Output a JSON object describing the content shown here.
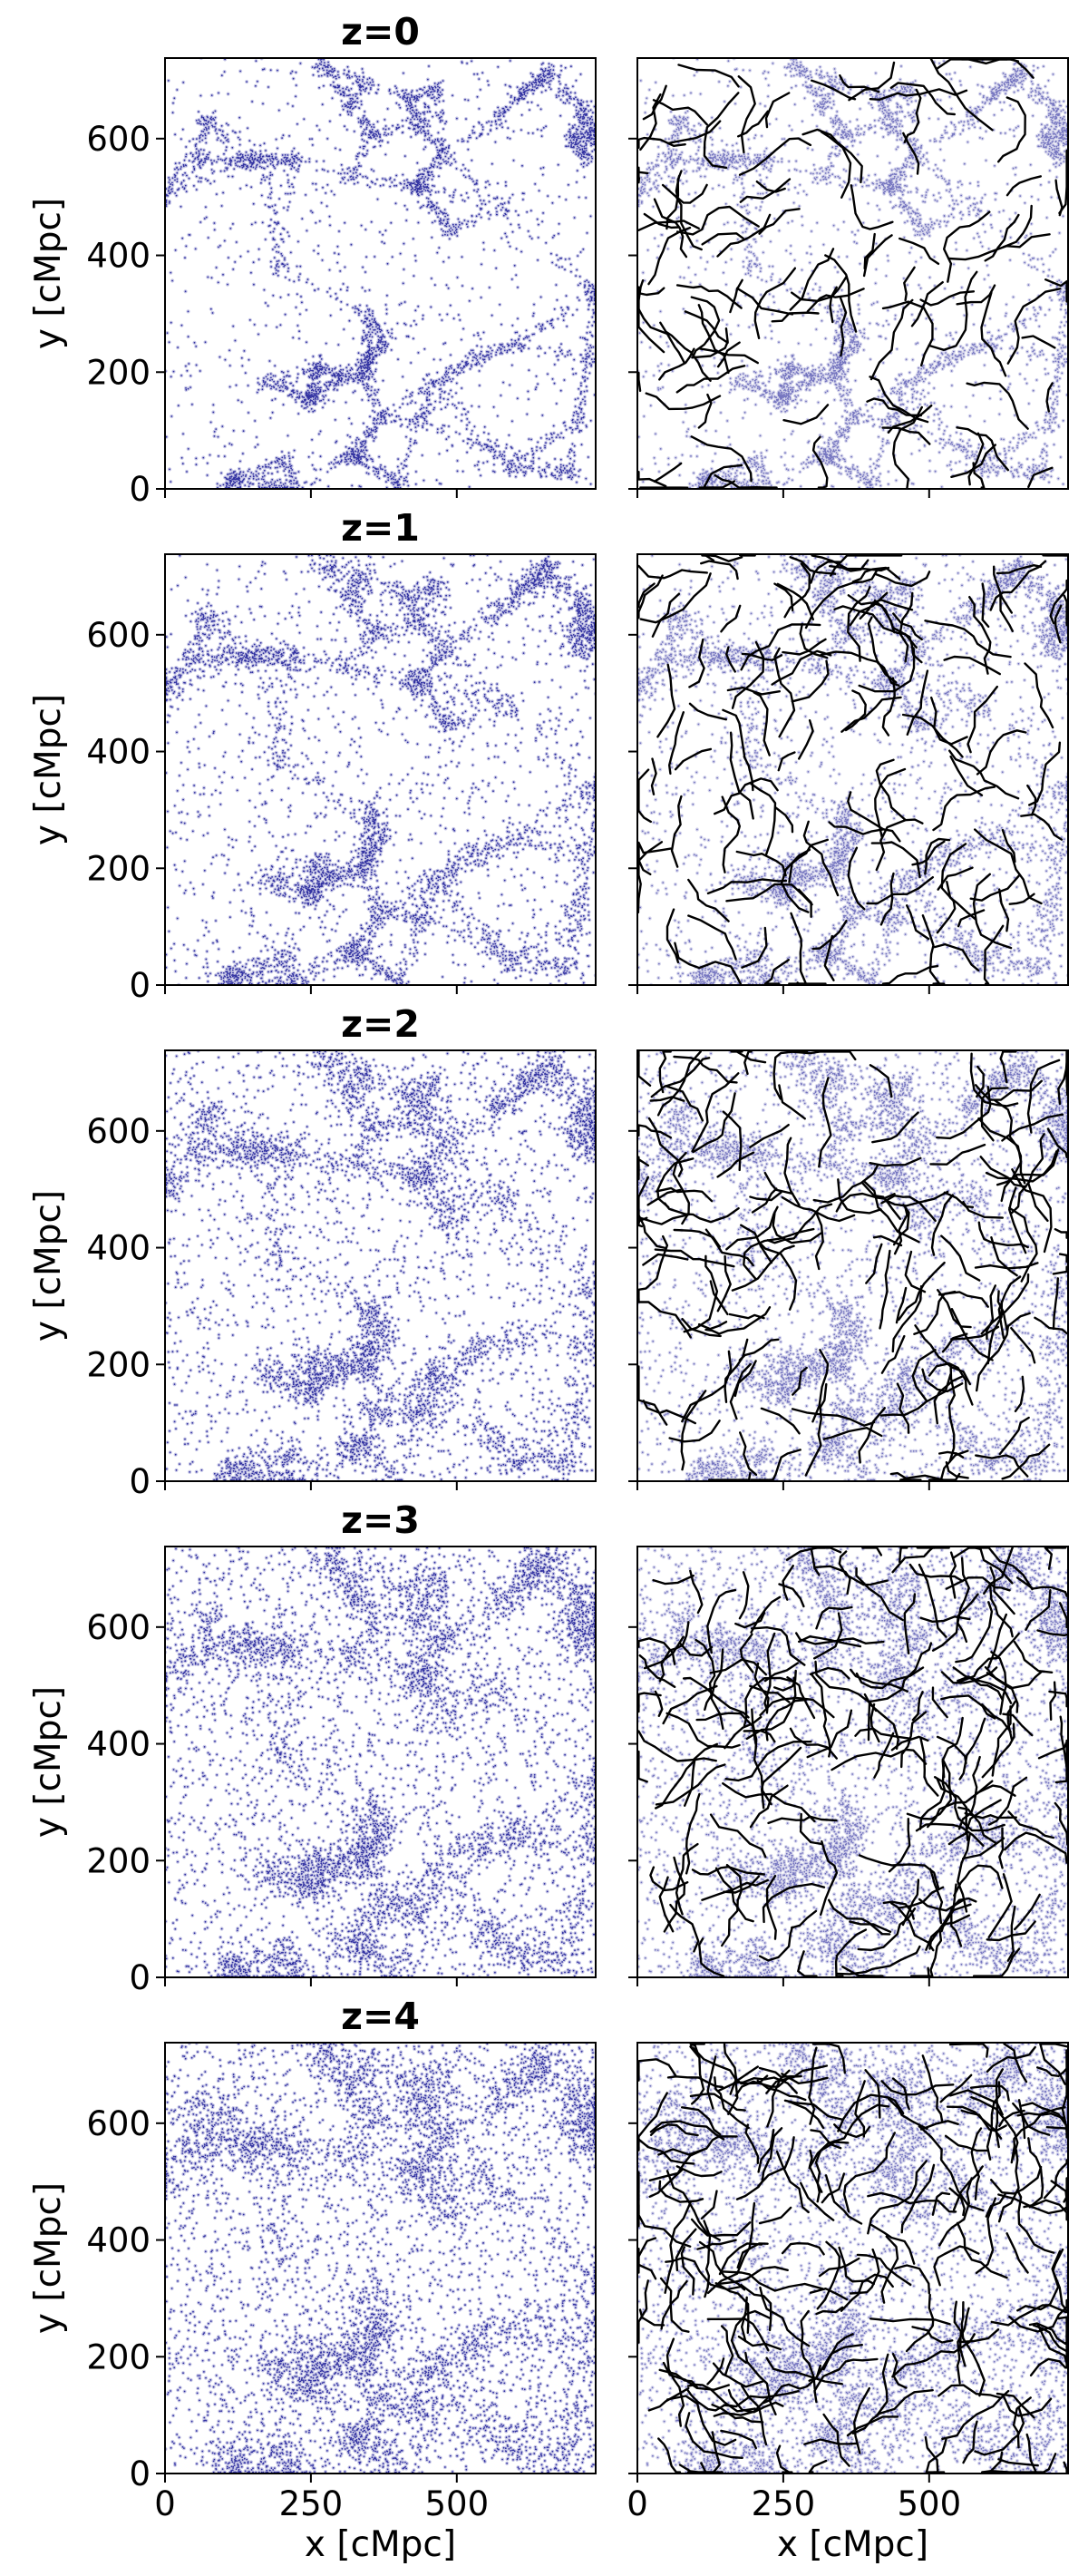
{
  "figure": {
    "column_x_label": "x [cMpc]",
    "row_y_label": "y [cMpc]",
    "point_color": "#00008b",
    "filament_color": "#000000"
  },
  "chart_data": [
    {
      "type": "scatter",
      "title": "z=0",
      "redshift": 0,
      "xlabel": "",
      "ylabel": "y [cMpc]",
      "xlim": [
        0,
        738
      ],
      "ylim": [
        0,
        738
      ],
      "x_ticks": [
        0,
        250,
        500
      ],
      "y_ticks": [
        0,
        200,
        400,
        600
      ],
      "left_panel": "particles",
      "right_panel": "particles + filaments",
      "grid": false
    },
    {
      "type": "scatter",
      "title": "z=1",
      "redshift": 1,
      "xlabel": "",
      "ylabel": "y [cMpc]",
      "xlim": [
        0,
        738
      ],
      "ylim": [
        0,
        738
      ],
      "x_ticks": [
        0,
        250,
        500
      ],
      "y_ticks": [
        0,
        200,
        400,
        600
      ],
      "left_panel": "particles",
      "right_panel": "particles + filaments",
      "grid": false
    },
    {
      "type": "scatter",
      "title": "z=2",
      "redshift": 2,
      "xlabel": "",
      "ylabel": "y [cMpc]",
      "xlim": [
        0,
        738
      ],
      "ylim": [
        0,
        738
      ],
      "x_ticks": [
        0,
        250,
        500
      ],
      "y_ticks": [
        0,
        200,
        400,
        600
      ],
      "left_panel": "particles",
      "right_panel": "particles + filaments",
      "grid": false
    },
    {
      "type": "scatter",
      "title": "z=3",
      "redshift": 3,
      "xlabel": "",
      "ylabel": "y [cMpc]",
      "xlim": [
        0,
        738
      ],
      "ylim": [
        0,
        738
      ],
      "x_ticks": [
        0,
        250,
        500
      ],
      "y_ticks": [
        0,
        200,
        400,
        600
      ],
      "left_panel": "particles",
      "right_panel": "particles + filaments",
      "grid": false
    },
    {
      "type": "scatter",
      "title": "z=4",
      "redshift": 4,
      "xlabel": "x [cMpc]",
      "ylabel": "y [cMpc]",
      "xlim": [
        0,
        738
      ],
      "ylim": [
        0,
        738
      ],
      "x_ticks": [
        0,
        250,
        500
      ],
      "y_ticks": [
        0,
        200,
        400,
        600
      ],
      "left_panel": "particles",
      "right_panel": "particles + filaments",
      "grid": false
    }
  ]
}
